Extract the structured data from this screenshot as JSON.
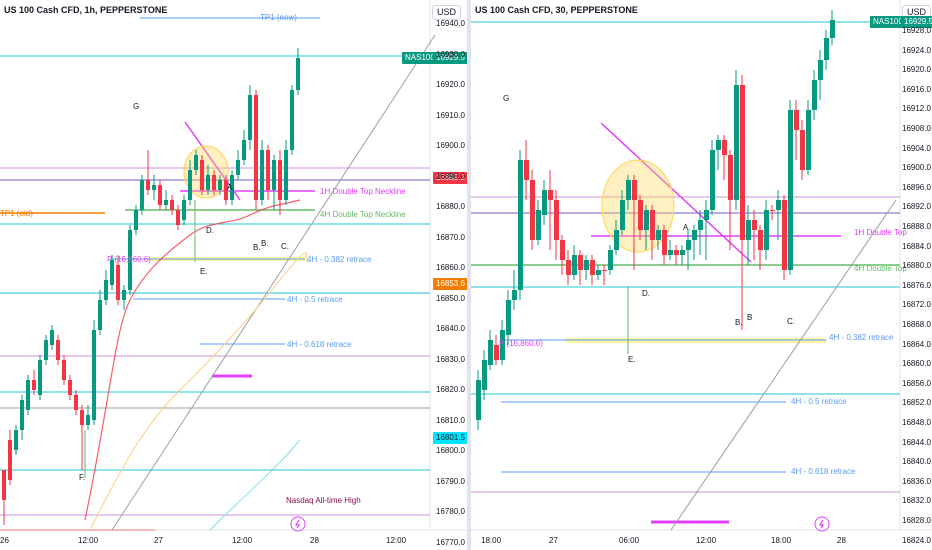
{
  "colors": {
    "up": "#089981",
    "down": "#f23645",
    "accent": "#089981",
    "grid": "#f0f3fa"
  },
  "left": {
    "title": "US 100 Cash CFD, 1h, PEPPERSTONE",
    "currency": "USD",
    "price_ticks": [
      "16940.0",
      "16930.0",
      "16920.0",
      "16910.0",
      "16900.0",
      "16890.0",
      "16880.0",
      "16870.0",
      "16860.0",
      "16850.0",
      "16840.0",
      "16830.0",
      "16820.0",
      "16810.0",
      "16800.0",
      "16790.0",
      "16780.0",
      "16770.0"
    ],
    "time_ticks": [
      "26",
      "12:00",
      "27",
      "12:00",
      "28",
      "12:00"
    ],
    "badges": {
      "symbol": "NAS100",
      "price": "16929.5",
      "red": "16889.2",
      "orange": "16853.6",
      "cyan": "16801.5"
    },
    "labels": {
      "tp1": "TP1 (new)",
      "neck1h": "1H Double Top Neckline",
      "neck4h": "4H Double Top Neckline",
      "tp1old": "TP1 (old)",
      "r382": "4H - 0.382 retrace",
      "r5": "4H - 0.5 retrace",
      "r618": "4H - 0.618 retrace",
      "pivot": "P (16,860.6)",
      "ath": "Nasdaq All-time High",
      "G": "G",
      "A": "A.",
      "B1": "B.",
      "B2": "B.",
      "C": "C.",
      "D": "D.",
      "E": "E.",
      "F": "F."
    }
  },
  "right": {
    "title": "US 100 Cash CFD, 30, PEPPERSTONE",
    "currency": "USD",
    "price_ticks": [
      "16928.0",
      "16924.0",
      "16920.0",
      "16916.0",
      "16912.0",
      "16908.0",
      "16904.0",
      "16900.0",
      "16896.0",
      "16892.0",
      "16888.0",
      "16884.0",
      "16880.0",
      "16876.0",
      "16872.0",
      "16868.0",
      "16864.0",
      "16860.0",
      "16856.0",
      "16852.0",
      "16848.0",
      "16844.0",
      "16840.0",
      "16836.0",
      "16832.0",
      "16828.0",
      "16824.0"
    ],
    "time_ticks": [
      "18:00",
      "27",
      "06:00",
      "12:00",
      "18:00",
      "28"
    ],
    "badges": {
      "symbol": "NAS100",
      "price": "16929.5"
    },
    "labels": {
      "neck1h": "1H Double Top",
      "neck4h": "4H Double Top",
      "r382": "4H - 0.382 retrace",
      "r5": "4H - 0.5 retrace",
      "r618": "4H - 0.618 retrace",
      "pivot": "P (16,860.6)",
      "G": "G",
      "A": "A.",
      "B1": "B.",
      "B2": "B",
      "C": "C.",
      "D": "D.",
      "E": "E."
    }
  }
}
